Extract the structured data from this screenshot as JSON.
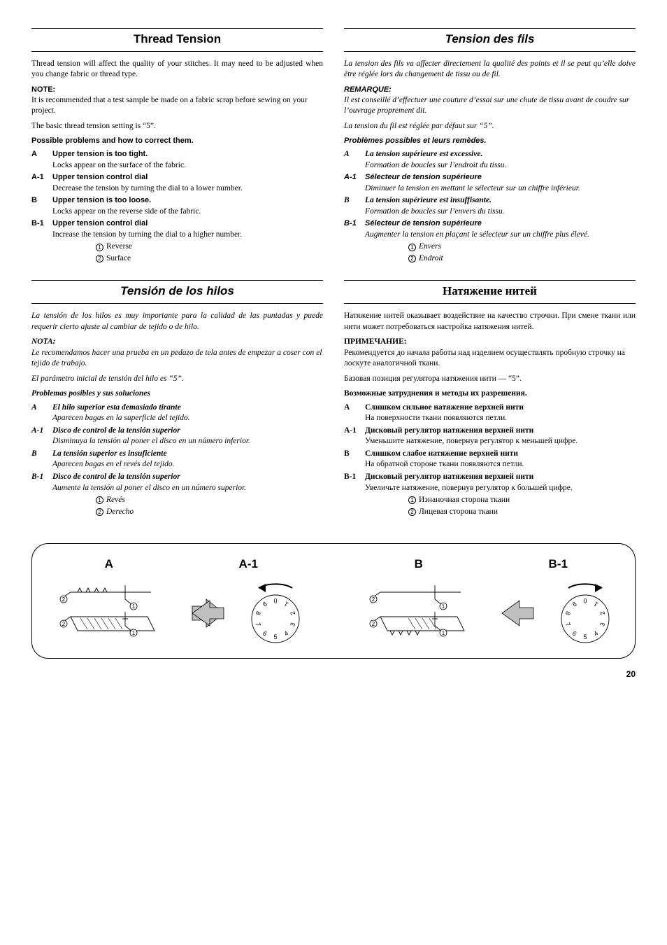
{
  "en": {
    "title": "Thread Tension",
    "intro": "Thread tension will affect the quality of your stitches. It may need to be adjusted when you change fabric or thread type.",
    "note_head": "NOTE:",
    "note_body1": "It is recommended that a test sample be made on a fabric scrap before sewing on your project.",
    "note_body2": "The basic thread tension setting is “5”.",
    "subhead": "Possible problems and how to correct them.",
    "A_tag": "A",
    "A_ttl": "Upper tension is too tight.",
    "A_desc": "Locks appear on the surface of the fabric.",
    "A1_tag": "A-1",
    "A1_ttl": "Upper tension control dial",
    "A1_desc": "Decrease the tension by turning the dial to a lower number.",
    "B_tag": "B",
    "B_ttl": "Upper tension is too loose.",
    "B_desc": "Locks appear on the reverse side of the fabric.",
    "B1_tag": "B-1",
    "B1_ttl": "Upper tension control dial",
    "B1_desc": "Increase the tension by turning the dial to a higher number.",
    "leg1": "Reverse",
    "leg2": "Surface"
  },
  "fr": {
    "title": "Tension des fils",
    "intro": "La tension des fils va affecter directement la qualité des points et il se peut qu’elle doive être réglée lors du changement de tissu ou de fil.",
    "note_head": "REMARQUE:",
    "note_body1": "Il est conseillé d’effectuer une couture d’essai sur une chute de tissu avant de coudre sur l’ouvrage proprement dit.",
    "note_body2": "La tension du fil est réglée par défaut sur “5”.",
    "subhead": "Problèmes possibles et leurs remèdes.",
    "A_tag": "A",
    "A_ttl": "La tension supérieure est excessive.",
    "A_desc": "Formation de boucles sur l’endroit du tissu.",
    "A1_tag": "A-1",
    "A1_ttl": "Sélecteur de tension supérieure",
    "A1_desc": "Diminuer la tension en mettant le sélecteur sur un chiffre inférieur.",
    "B_tag": "B",
    "B_ttl": "La tension supérieure est insuffisante.",
    "B_desc": "Formation de boucles sur l’envers du tissu.",
    "B1_tag": "B-1",
    "B1_ttl": "Sélecteur de tension supérieure",
    "B1_desc": "Augmenter la tension en plaçant le sélecteur sur un chiffre plus élevé.",
    "leg1": "Envers",
    "leg2": "Endroit"
  },
  "es": {
    "title": "Tensión de los hilos",
    "intro": "La tensión de los hilos es muy importante para la calidad de las puntadas y puede requerir cierto ajuste al cambiar de tejido o de hilo.",
    "note_head": "NOTA:",
    "note_body1": "Le recomendamos hacer una prueba en un pedazo de tela antes de empezar a coser con el tejido de trabajo.",
    "note_body2": "El parámetro inicial de tensión del hilo es “5”.",
    "subhead": "Problemas posibles y sus soluciones",
    "A_tag": "A",
    "A_ttl": "El hilo superior esta demasiado tirante",
    "A_desc": "Aparecen bagas en la superficie del tejido.",
    "A1_tag": "A-1",
    "A1_ttl": "Disco de control de la tensión superior",
    "A1_desc": "Disminuya la tensión al poner el disco en un número inferior.",
    "B_tag": "B",
    "B_ttl": "La tensión superior es insuficiente",
    "B_desc": "Aparecen bagas en el revés del tejido.",
    "B1_tag": "B-1",
    "B1_ttl": "Disco de control de la tensión superior",
    "B1_desc": "Aumente la tensión al poner el disco en un número superior.",
    "leg1": "Revés",
    "leg2": "Derecho"
  },
  "ru": {
    "title": "Натяжение нитей",
    "intro": "Натяжение нитей оказывает воздействие на качество строчки. При смене ткани или нити может потребоваться настройка натяжения нитей.",
    "note_head": "ПРИМЕЧАНИЕ:",
    "note_body1": "Рекомендуется до начала работы над изделием осуществлять пробную строчку на лоскуте аналогичной ткани.",
    "note_body2": "Базовая позиция регулятора натяжения нити — “5”.",
    "subhead": "Возможные затруднения и методы их разрешения.",
    "A_tag": "A",
    "A_ttl": "Слишком сильное натяжение верхней нити",
    "A_desc": "На поверхности ткани появляются петли.",
    "A1_tag": "A-1",
    "A1_ttl": "Дисковый регулятор натяжения верхней нити",
    "A1_desc": "Уменьшите натяжение, повернув регулятор к меньшей цифре.",
    "B_tag": "B",
    "B_ttl": "Слишком слабое натяжение верхней нити",
    "B_desc": "На обратной стороне ткани появляются петли.",
    "B1_tag": "B-1",
    "B1_ttl": "Дисковый регулятор натяжения верхней нити",
    "B1_desc": "Увеличьте натяжение, повернув регулятор к большей цифре.",
    "leg1": "Изнаночная сторона ткани",
    "leg2": "Лицевая сторона ткани"
  },
  "figure": {
    "labels": {
      "A": "A",
      "A1": "A-1",
      "B": "B",
      "B1": "B-1"
    },
    "dial_numbers": [
      "0",
      "1",
      "2",
      "3",
      "4",
      "5",
      "6",
      "7",
      "8",
      "9"
    ],
    "colors": {
      "stroke": "#000000",
      "arrow_fill": "#bfbfbf"
    }
  },
  "page_number": "20"
}
